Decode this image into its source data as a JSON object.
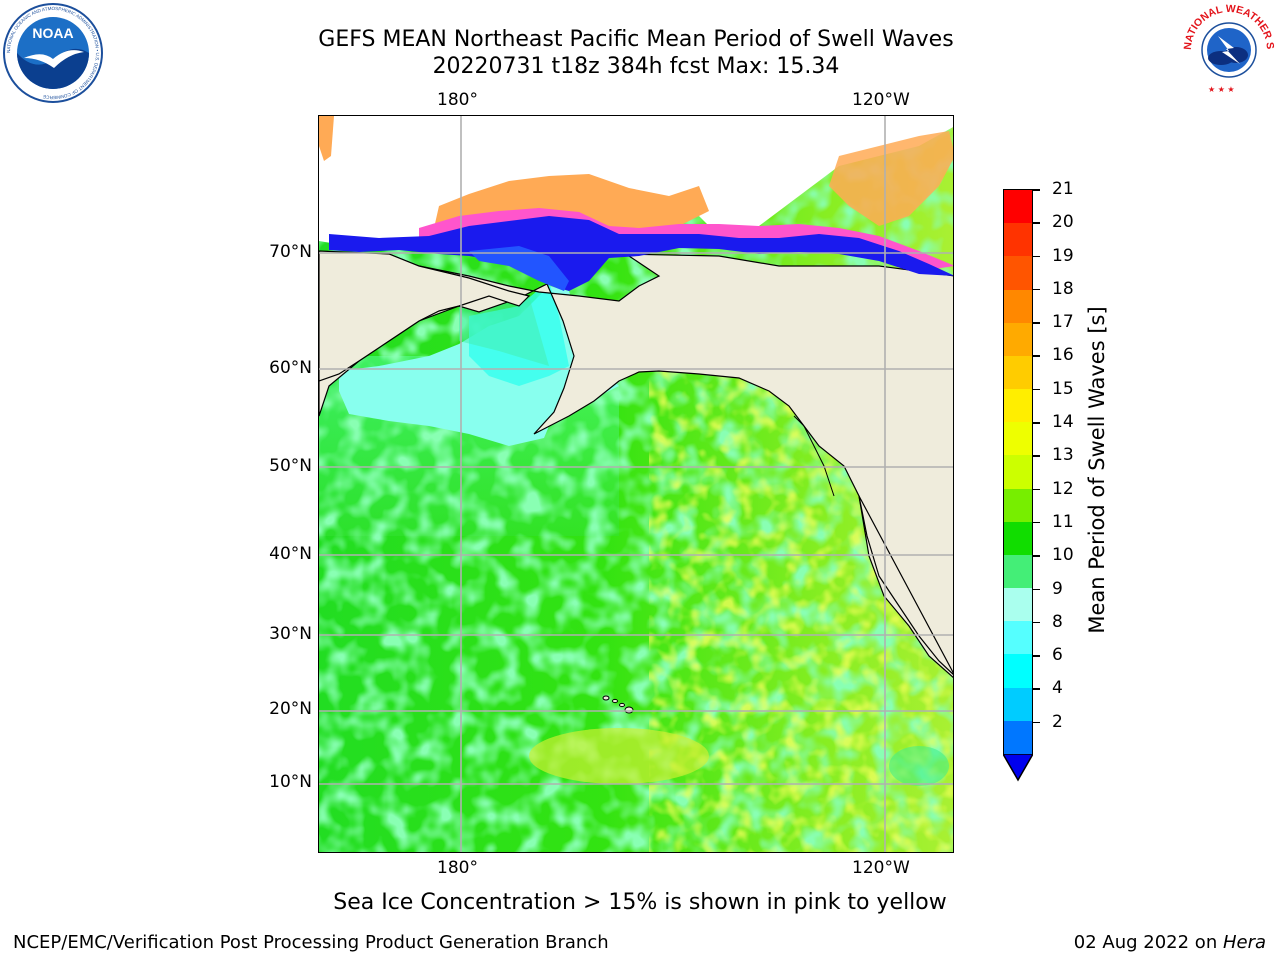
{
  "header": {
    "title_line1": "GEFS MEAN Northeast Pacific Mean Period of Swell Waves",
    "title_line2": "20220731 t18z 384h fcst   Max: 15.34"
  },
  "logos": {
    "left": "NOAA",
    "left_ring_text": "NATIONAL OCEANIC AND ATMOSPHERIC ADMINISTRATION • U.S. DEPARTMENT OF COMMERCE",
    "right_ring_text": "NATIONAL WEATHER SERVICE"
  },
  "map": {
    "lon_labels_top": [
      "180°",
      "120°W"
    ],
    "lon_labels_bottom": [
      "180°",
      "120°W"
    ],
    "lat_labels": [
      "70°N",
      "60°N",
      "50°N",
      "40°N",
      "30°N",
      "20°N",
      "10°N"
    ],
    "colors": {
      "land": "#efecdc",
      "ocean_base": "#22dd11",
      "grid": "#b0b0b0",
      "ice_pink": "#ff66cc",
      "ice_orange": "#ffaa55"
    }
  },
  "colorbar": {
    "label": "Mean Period of Swell Waves [s]",
    "ticks": [
      "21",
      "20",
      "19",
      "18",
      "17",
      "16",
      "15",
      "14",
      "13",
      "12",
      "11",
      "10",
      "9",
      "8",
      "6",
      "4",
      "2"
    ],
    "colors_top_to_bottom": [
      "#ff0000",
      "#ff3300",
      "#ff5500",
      "#ff8800",
      "#ffaa00",
      "#ffcc00",
      "#ffee00",
      "#eeff00",
      "#ccff00",
      "#77ee00",
      "#11dd00",
      "#44ee77",
      "#aaffee",
      "#55ffff",
      "#00ffff",
      "#00ccff",
      "#0077ff"
    ],
    "extend_color": "#0000ee"
  },
  "caption": "Sea Ice Concentration > 15% is shown in pink to yellow",
  "footer": {
    "left": "NCEP/EMC/Verification Post Processing Product Generation Branch",
    "right_date": "02 Aug 2022 on ",
    "right_machine": "Hera"
  }
}
